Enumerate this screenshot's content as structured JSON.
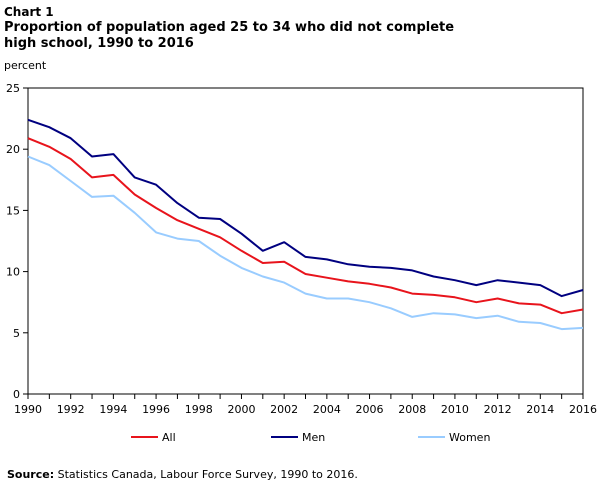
{
  "chart_label": "Chart 1",
  "title": "Proportion of population aged 25 to 34 who did not complete high school, 1990 to 2016",
  "y_unit": "percent",
  "source_label": "Source:",
  "source_text": " Statistics Canada, Labour Force Survey, 1990 to 2016.",
  "chart_data": {
    "type": "line",
    "title": "Proportion of population aged 25 to 34 who did not complete high school, 1990 to 2016",
    "xlabel": "",
    "ylabel": "percent",
    "xlim": [
      1990,
      2016
    ],
    "ylim": [
      0,
      25
    ],
    "y_ticks": [
      0,
      5,
      10,
      15,
      20,
      25
    ],
    "x_ticks": [
      1990,
      1992,
      1994,
      1996,
      1998,
      2000,
      2002,
      2004,
      2006,
      2008,
      2010,
      2012,
      2014,
      2016
    ],
    "grid": false,
    "legend_position": "bottom",
    "x": [
      1990,
      1991,
      1992,
      1993,
      1994,
      1995,
      1996,
      1997,
      1998,
      1999,
      2000,
      2001,
      2002,
      2003,
      2004,
      2005,
      2006,
      2007,
      2008,
      2009,
      2010,
      2011,
      2012,
      2013,
      2014,
      2015,
      2016
    ],
    "series": [
      {
        "name": "All",
        "color": "#e8141c",
        "values": [
          20.9,
          20.2,
          19.2,
          17.7,
          17.9,
          16.3,
          15.2,
          14.2,
          13.5,
          12.8,
          11.7,
          10.7,
          10.8,
          9.8,
          9.5,
          9.2,
          9.0,
          8.7,
          8.2,
          8.1,
          7.9,
          7.5,
          7.8,
          7.4,
          7.3,
          6.6,
          6.9
        ]
      },
      {
        "name": "Men",
        "color": "#000080",
        "values": [
          22.4,
          21.8,
          20.9,
          19.4,
          19.6,
          17.7,
          17.1,
          15.6,
          14.4,
          14.3,
          13.1,
          11.7,
          12.4,
          11.2,
          11.0,
          10.6,
          10.4,
          10.3,
          10.1,
          9.6,
          9.3,
          8.9,
          9.3,
          9.1,
          8.9,
          8.0,
          8.5
        ]
      },
      {
        "name": "Women",
        "color": "#99ccff",
        "values": [
          19.4,
          18.7,
          17.4,
          16.1,
          16.2,
          14.8,
          13.2,
          12.7,
          12.5,
          11.3,
          10.3,
          9.6,
          9.1,
          8.2,
          7.8,
          7.8,
          7.5,
          7.0,
          6.3,
          6.6,
          6.5,
          6.2,
          6.4,
          5.9,
          5.8,
          5.3,
          5.4
        ]
      }
    ]
  }
}
